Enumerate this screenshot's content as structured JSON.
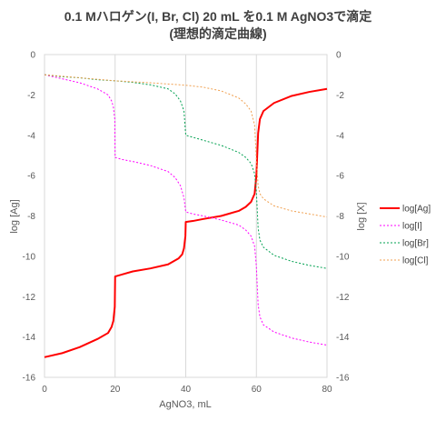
{
  "chart_data": {
    "type": "line",
    "title": "0.1 Mハロゲン(I,  Br, Cl) 20 mL を0.1 M AgNO3で滴定",
    "subtitle": "(理想的滴定曲線)",
    "xlabel": "AgNO3, mL",
    "ylabel_left": "log [Ag]",
    "ylabel_right": "log [X]",
    "xlim": [
      0,
      80
    ],
    "ylim": [
      -16,
      0
    ],
    "x_ticks": [
      "0",
      "20",
      "40",
      "60",
      "80"
    ],
    "y_ticks": [
      "0",
      "-2",
      "-4",
      "-6",
      "-8",
      "-10",
      "-12",
      "-14",
      "-16"
    ],
    "grid": "vertical",
    "legend_position": "right",
    "series": [
      {
        "name": "log[Ag]",
        "color": "#ff0000",
        "style": "solid",
        "points": [
          [
            0,
            -15.0
          ],
          [
            5,
            -14.8
          ],
          [
            10,
            -14.5
          ],
          [
            15,
            -14.1
          ],
          [
            18,
            -13.8
          ],
          [
            19,
            -13.5
          ],
          [
            19.5,
            -13.2
          ],
          [
            19.9,
            -12.5
          ],
          [
            20,
            -11.0
          ],
          [
            22,
            -10.9
          ],
          [
            25,
            -10.75
          ],
          [
            30,
            -10.6
          ],
          [
            35,
            -10.4
          ],
          [
            38,
            -10.1
          ],
          [
            39,
            -9.9
          ],
          [
            39.5,
            -9.6
          ],
          [
            39.9,
            -9.0
          ],
          [
            40,
            -8.3
          ],
          [
            42,
            -8.25
          ],
          [
            45,
            -8.15
          ],
          [
            50,
            -8.0
          ],
          [
            55,
            -7.75
          ],
          [
            57,
            -7.55
          ],
          [
            58.5,
            -7.3
          ],
          [
            59.5,
            -6.9
          ],
          [
            60,
            -6.0
          ],
          [
            60.5,
            -3.9
          ],
          [
            61,
            -3.2
          ],
          [
            62,
            -2.8
          ],
          [
            65,
            -2.4
          ],
          [
            70,
            -2.05
          ],
          [
            75,
            -1.85
          ],
          [
            80,
            -1.7
          ]
        ]
      },
      {
        "name": "log[I]",
        "color": "#ff00ff",
        "style": "dotted",
        "points": [
          [
            0,
            -1.0
          ],
          [
            5,
            -1.2
          ],
          [
            10,
            -1.4
          ],
          [
            15,
            -1.7
          ],
          [
            18,
            -2.0
          ],
          [
            19,
            -2.3
          ],
          [
            19.5,
            -2.6
          ],
          [
            19.9,
            -3.2
          ],
          [
            20,
            -5.1
          ],
          [
            22,
            -5.2
          ],
          [
            25,
            -5.3
          ],
          [
            30,
            -5.5
          ],
          [
            35,
            -5.8
          ],
          [
            37,
            -6.1
          ],
          [
            38.5,
            -6.5
          ],
          [
            39.5,
            -7.1
          ],
          [
            40,
            -7.8
          ],
          [
            42,
            -7.9
          ],
          [
            45,
            -8.0
          ],
          [
            50,
            -8.2
          ],
          [
            55,
            -8.45
          ],
          [
            57,
            -8.7
          ],
          [
            58.5,
            -9.0
          ],
          [
            59.5,
            -9.5
          ],
          [
            60,
            -10.5
          ],
          [
            60.5,
            -12.4
          ],
          [
            61,
            -13.0
          ],
          [
            62,
            -13.4
          ],
          [
            65,
            -13.75
          ],
          [
            70,
            -14.05
          ],
          [
            75,
            -14.25
          ],
          [
            80,
            -14.4
          ]
        ]
      },
      {
        "name": "log[Br]",
        "color": "#00a050",
        "style": "dotted",
        "points": [
          [
            0,
            -1.0
          ],
          [
            5,
            -1.1
          ],
          [
            10,
            -1.15
          ],
          [
            15,
            -1.25
          ],
          [
            20,
            -1.3
          ],
          [
            25,
            -1.38
          ],
          [
            30,
            -1.5
          ],
          [
            35,
            -1.7
          ],
          [
            37,
            -1.95
          ],
          [
            38.5,
            -2.3
          ],
          [
            39.5,
            -2.8
          ],
          [
            40,
            -4.0
          ],
          [
            42,
            -4.1
          ],
          [
            45,
            -4.25
          ],
          [
            50,
            -4.5
          ],
          [
            55,
            -4.85
          ],
          [
            57,
            -5.1
          ],
          [
            58.5,
            -5.4
          ],
          [
            59.5,
            -5.9
          ],
          [
            60,
            -6.8
          ],
          [
            60.5,
            -8.6
          ],
          [
            61,
            -9.2
          ],
          [
            62,
            -9.55
          ],
          [
            65,
            -9.95
          ],
          [
            70,
            -10.25
          ],
          [
            75,
            -10.45
          ],
          [
            80,
            -10.6
          ]
        ]
      },
      {
        "name": "log[Cl]",
        "color": "#f0a050",
        "style": "dotted",
        "points": [
          [
            0,
            -1.0
          ],
          [
            10,
            -1.15
          ],
          [
            20,
            -1.3
          ],
          [
            30,
            -1.4
          ],
          [
            40,
            -1.52
          ],
          [
            45,
            -1.62
          ],
          [
            50,
            -1.8
          ],
          [
            55,
            -2.15
          ],
          [
            57,
            -2.45
          ],
          [
            58.5,
            -2.8
          ],
          [
            59.5,
            -3.5
          ],
          [
            60,
            -5.2
          ],
          [
            60.5,
            -6.5
          ],
          [
            61,
            -6.9
          ],
          [
            62,
            -7.15
          ],
          [
            65,
            -7.5
          ],
          [
            70,
            -7.75
          ],
          [
            75,
            -7.9
          ],
          [
            80,
            -8.05
          ]
        ]
      }
    ]
  }
}
